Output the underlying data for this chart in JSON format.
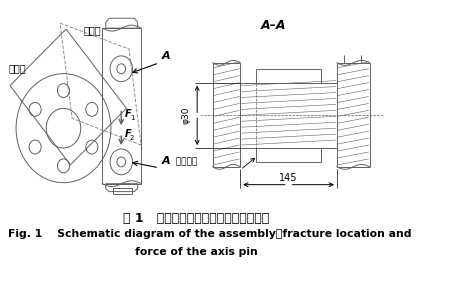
{
  "title_cn": "图 1   轴销装配、断裂位置与受力示意图",
  "title_en_line1": "Fig. 1    Schematic diagram of the assembly，fracture location and",
  "title_en_line2": "force of the axis pin",
  "label_A": "A",
  "label_AA": "A–A",
  "label_hewei": "合位置",
  "label_fenwei": "分位置",
  "label_duanlie": "断裂位置",
  "label_F1": "F",
  "label_F2": "F",
  "label_phi30": "φ30",
  "label_145": "145",
  "bg_color": "#ffffff",
  "drawing_color": "#606060",
  "text_color": "#000000",
  "dim_color": "#000000"
}
